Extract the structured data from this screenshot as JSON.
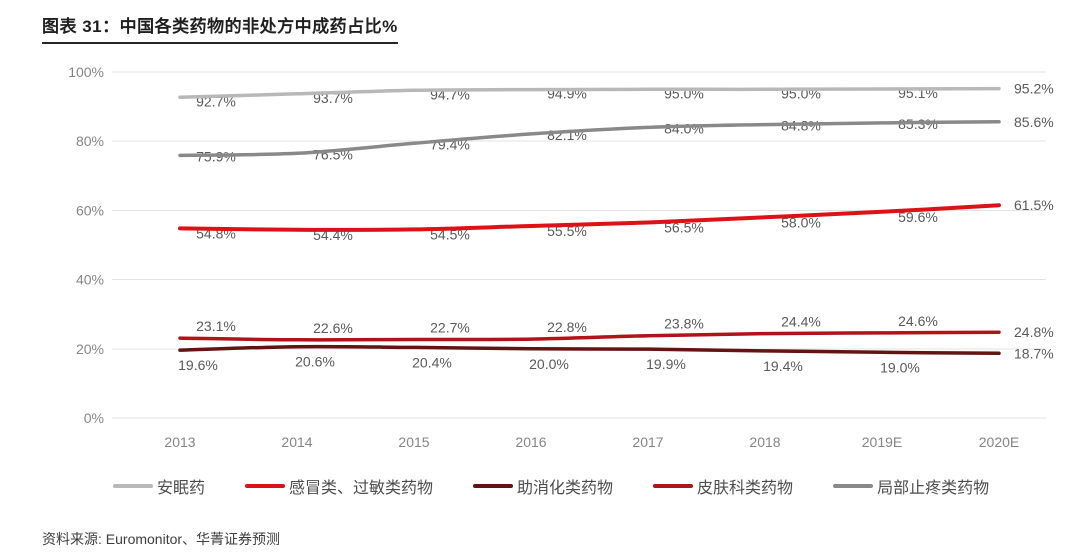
{
  "title": "图表 31：中国各类药物的非处方中成药占比%",
  "source": "资料来源: Euromonitor、华菁证券预测",
  "chart_data": {
    "type": "line",
    "categories": [
      "2013",
      "2014",
      "2015",
      "2016",
      "2017",
      "2018",
      "2019E",
      "2020E"
    ],
    "series": [
      {
        "name": "安眠药",
        "color": "#b8b8b8",
        "values": [
          92.7,
          93.7,
          94.7,
          94.9,
          95.0,
          95.0,
          95.1,
          95.2
        ]
      },
      {
        "name": "感冒类、过敏类药物",
        "color": "#dd1218",
        "values": [
          54.8,
          54.4,
          54.5,
          55.5,
          56.5,
          58.0,
          59.6,
          61.5
        ]
      },
      {
        "name": "助消化类药物",
        "color": "#621412",
        "values": [
          19.6,
          20.6,
          20.4,
          20.0,
          19.9,
          19.4,
          19.0,
          18.7
        ]
      },
      {
        "name": "皮肤科类药物",
        "color": "#b01318",
        "values": [
          23.1,
          22.6,
          22.7,
          22.8,
          23.8,
          24.4,
          24.6,
          24.8
        ]
      },
      {
        "name": "局部止疼类药物",
        "color": "#898989",
        "values": [
          75.9,
          76.5,
          79.4,
          82.1,
          84.0,
          84.8,
          85.3,
          85.6
        ]
      }
    ],
    "yticks": [
      "0%",
      "20%",
      "40%",
      "60%",
      "80%",
      "100%"
    ],
    "ylim": [
      0,
      100
    ],
    "grid": true,
    "legend_position": "bottom",
    "data_labels": true,
    "label_color": "#595959",
    "axis_label_color": "#858585",
    "gridline_color": "#e3e3e3"
  }
}
